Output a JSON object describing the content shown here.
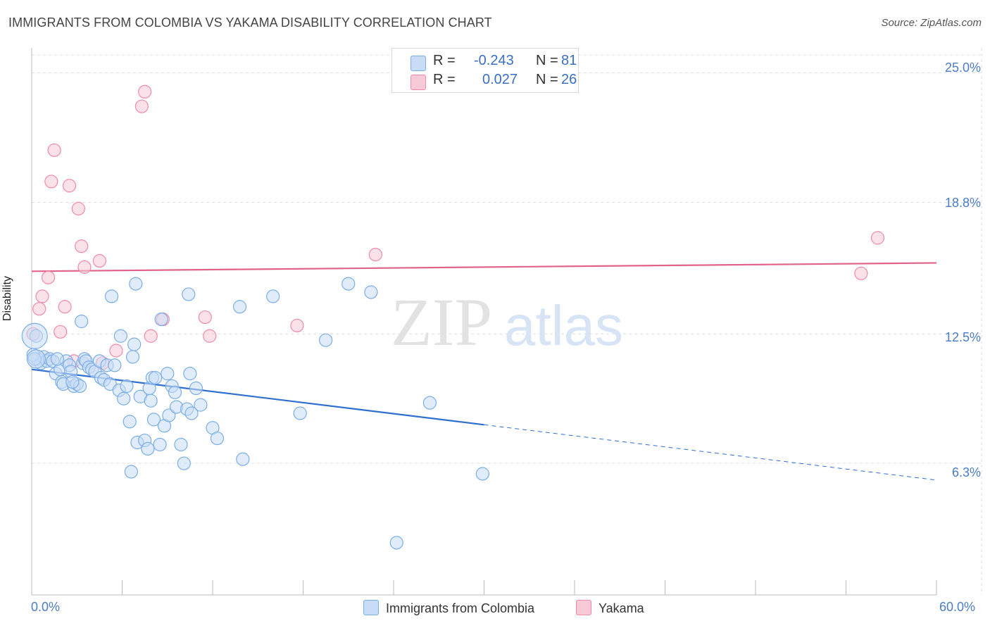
{
  "title": "IMMIGRANTS FROM COLOMBIA VS YAKAMA DISABILITY CORRELATION CHART",
  "source": "Source: ZipAtlas.com",
  "watermark": {
    "zip": "ZIP",
    "atlas": "atlas"
  },
  "legend": {
    "r_label": "R =",
    "n_label": "N =",
    "entries": [
      {
        "r": "-0.243",
        "n": "81"
      },
      {
        "r": "0.027",
        "n": "26"
      }
    ]
  },
  "chart_data": {
    "type": "scatter",
    "title": "IMMIGRANTS FROM COLOMBIA VS YAKAMA DISABILITY CORRELATION CHART",
    "xlabel": "",
    "ylabel": "Disability",
    "xlim": [
      0,
      60
    ],
    "ylim": [
      0,
      26.2
    ],
    "x_tick_labels": [
      "0.0%",
      "60.0%"
    ],
    "y_ticks": [
      6.3,
      12.5,
      18.8,
      25.0
    ],
    "y_tick_labels": [
      "6.3%",
      "12.5%",
      "18.8%",
      "25.0%"
    ],
    "grid": true,
    "legend_position": "top-center",
    "series": [
      {
        "name": "Immigrants from Colombia",
        "color": "#7aaeea",
        "fill": "#c9dcf6",
        "r": -0.243,
        "n": 81,
        "trend": {
          "x0": 0,
          "y0": 10.8,
          "x_solid_end": 30,
          "x1": 60,
          "y1": 5.5
        },
        "points": [
          [
            0.4,
            11.3
          ],
          [
            0.6,
            11.1
          ],
          [
            0.8,
            11.4
          ],
          [
            1.0,
            11.2
          ],
          [
            1.2,
            11.3
          ],
          [
            1.4,
            11.2
          ],
          [
            1.6,
            10.6
          ],
          [
            1.9,
            10.8
          ],
          [
            2.0,
            10.2
          ],
          [
            2.1,
            10.1
          ],
          [
            2.3,
            11.2
          ],
          [
            2.5,
            11.0
          ],
          [
            2.6,
            10.7
          ],
          [
            2.8,
            10.0
          ],
          [
            3.0,
            10.1
          ],
          [
            3.2,
            10.0
          ],
          [
            3.3,
            13.1
          ],
          [
            3.4,
            11.1
          ],
          [
            3.5,
            11.3
          ],
          [
            3.6,
            11.2
          ],
          [
            3.8,
            10.9
          ],
          [
            4.0,
            10.8
          ],
          [
            4.2,
            10.7
          ],
          [
            4.5,
            11.2
          ],
          [
            4.6,
            10.4
          ],
          [
            4.8,
            10.3
          ],
          [
            5.0,
            11.0
          ],
          [
            5.2,
            10.1
          ],
          [
            5.3,
            14.3
          ],
          [
            5.5,
            11.0
          ],
          [
            5.8,
            9.8
          ],
          [
            5.9,
            12.4
          ],
          [
            6.1,
            9.4
          ],
          [
            6.3,
            10.0
          ],
          [
            6.5,
            8.3
          ],
          [
            6.6,
            5.9
          ],
          [
            6.7,
            11.4
          ],
          [
            6.8,
            12.0
          ],
          [
            6.9,
            14.9
          ],
          [
            7.0,
            7.3
          ],
          [
            7.2,
            9.5
          ],
          [
            7.5,
            7.4
          ],
          [
            7.7,
            7.0
          ],
          [
            7.8,
            9.9
          ],
          [
            7.9,
            9.3
          ],
          [
            8.0,
            10.4
          ],
          [
            8.1,
            8.4
          ],
          [
            8.2,
            10.4
          ],
          [
            8.5,
            7.2
          ],
          [
            8.6,
            13.2
          ],
          [
            8.8,
            8.1
          ],
          [
            9.0,
            10.6
          ],
          [
            9.1,
            8.6
          ],
          [
            9.3,
            10.0
          ],
          [
            9.5,
            9.7
          ],
          [
            9.6,
            9.0
          ],
          [
            9.9,
            7.2
          ],
          [
            10.1,
            6.3
          ],
          [
            10.3,
            8.9
          ],
          [
            10.4,
            14.4
          ],
          [
            10.5,
            10.6
          ],
          [
            10.6,
            8.7
          ],
          [
            10.9,
            9.9
          ],
          [
            11.2,
            9.1
          ],
          [
            12.0,
            8.0
          ],
          [
            12.3,
            7.5
          ],
          [
            13.8,
            13.8
          ],
          [
            14.0,
            6.5
          ],
          [
            16.0,
            14.3
          ],
          [
            17.8,
            8.7
          ],
          [
            19.5,
            12.2
          ],
          [
            21.0,
            14.9
          ],
          [
            22.5,
            14.5
          ],
          [
            24.2,
            2.5
          ],
          [
            26.4,
            9.2
          ],
          [
            29.9,
            5.8
          ],
          [
            0.1,
            11.5
          ],
          [
            0.2,
            11.3
          ],
          [
            1.7,
            11.3
          ],
          [
            2.7,
            10.2
          ],
          [
            0.3,
            12.4
          ]
        ]
      },
      {
        "name": "Yakama",
        "color": "#f08aa6",
        "fill": "#f8cad7",
        "r": 0.027,
        "n": 26,
        "trend": {
          "x0": 0,
          "y0": 15.5,
          "x1": 60,
          "y1": 15.9
        },
        "points": [
          [
            0.1,
            12.5
          ],
          [
            0.5,
            13.7
          ],
          [
            0.7,
            14.3
          ],
          [
            1.1,
            15.2
          ],
          [
            1.3,
            19.8
          ],
          [
            1.5,
            21.3
          ],
          [
            1.9,
            12.6
          ],
          [
            2.2,
            13.8
          ],
          [
            2.5,
            19.6
          ],
          [
            2.8,
            11.2
          ],
          [
            3.1,
            18.5
          ],
          [
            3.3,
            16.7
          ],
          [
            3.5,
            15.7
          ],
          [
            4.5,
            16.0
          ],
          [
            4.7,
            11.1
          ],
          [
            5.6,
            11.7
          ],
          [
            7.3,
            23.4
          ],
          [
            7.5,
            24.1
          ],
          [
            7.9,
            12.4
          ],
          [
            8.7,
            13.2
          ],
          [
            11.5,
            13.3
          ],
          [
            11.8,
            12.4
          ],
          [
            17.6,
            12.9
          ],
          [
            22.8,
            16.3
          ],
          [
            55.0,
            15.4
          ],
          [
            56.1,
            17.1
          ]
        ]
      }
    ]
  }
}
